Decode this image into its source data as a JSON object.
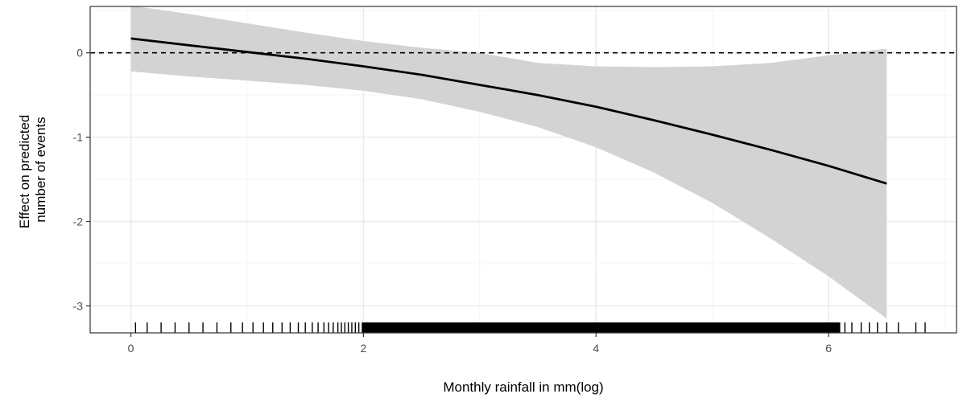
{
  "chart_data": {
    "type": "line",
    "title": "",
    "xlabel": "Monthly rainfall in mm(log)",
    "ylabel_lines": [
      "Effect on predicted",
      "number of events"
    ],
    "xlim": [
      -0.35,
      7.1
    ],
    "ylim": [
      -3.32,
      0.55
    ],
    "x_ticks": [
      0,
      2,
      4,
      6
    ],
    "y_ticks": [
      0,
      -1,
      -2,
      -3
    ],
    "x_tick_labels": [
      "0",
      "2",
      "4",
      "6"
    ],
    "y_tick_labels": [
      "0",
      "-1",
      "-2",
      "-3"
    ],
    "grid": true,
    "reference_line": {
      "y": 0,
      "style": "dashed"
    },
    "series": [
      {
        "x": [
          0,
          0.5,
          1,
          1.5,
          2,
          2.5,
          3,
          3.5,
          4,
          4.5,
          5,
          5.5,
          6,
          6.5
        ],
        "y": [
          0.17,
          0.09,
          0.01,
          -0.07,
          -0.16,
          -0.26,
          -0.38,
          -0.5,
          -0.64,
          -0.8,
          -0.97,
          -1.15,
          -1.34,
          -1.55
        ],
        "lower": [
          -0.22,
          -0.28,
          -0.33,
          -0.38,
          -0.45,
          -0.55,
          -0.7,
          -0.88,
          -1.12,
          -1.42,
          -1.78,
          -2.2,
          -2.65,
          -3.15
        ],
        "upper": [
          0.56,
          0.46,
          0.35,
          0.24,
          0.14,
          0.06,
          0.0,
          -0.12,
          -0.16,
          -0.17,
          -0.16,
          -0.12,
          -0.03,
          0.05
        ]
      }
    ],
    "rug": {
      "sparse_x": [
        0.04,
        0.14,
        0.26,
        0.38,
        0.5,
        0.62,
        0.74,
        0.86,
        0.96,
        1.05,
        1.14,
        1.22,
        1.3,
        1.37,
        1.44,
        1.5,
        1.56,
        1.61,
        1.66,
        1.7,
        1.74,
        1.78,
        1.81,
        1.84,
        1.87,
        1.9,
        1.93,
        1.96,
        1.99,
        6.14,
        6.2,
        6.28,
        6.35,
        6.42,
        6.5,
        6.6,
        6.75,
        6.83
      ],
      "dense_range": [
        1.99,
        6.1
      ]
    },
    "colors": {
      "line": "#000000",
      "band": "#d3d3d3",
      "grid_major": "#ebebeb",
      "grid_minor": "#f5f5f5",
      "panel_border": "#333333"
    }
  }
}
